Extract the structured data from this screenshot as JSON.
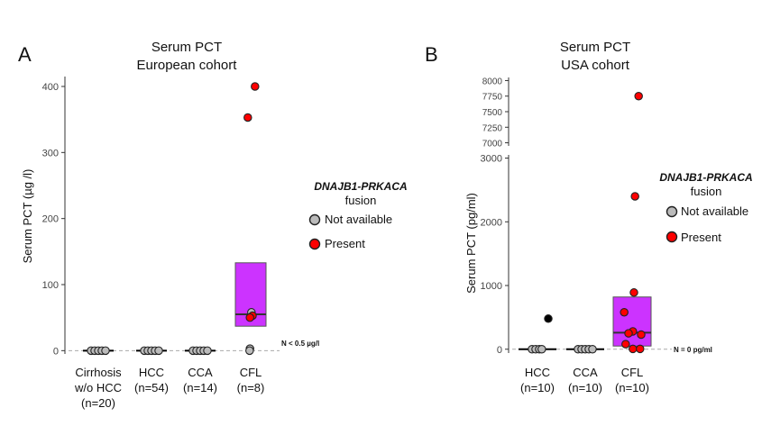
{
  "chart_data": [
    {
      "type": "box",
      "panel_label": "A",
      "title_lines": [
        "Serum PCT",
        "European cohort"
      ],
      "ylabel": "Serum PCT (µg /l)",
      "ylim": [
        -5,
        415
      ],
      "yticks": [
        0,
        100,
        200,
        300,
        400
      ],
      "categories": [
        {
          "lines": [
            "Cirrhosis",
            "w/o HCC",
            "(n=20)"
          ]
        },
        {
          "lines": [
            "HCC",
            "(n=54)"
          ]
        },
        {
          "lines": [
            "CCA",
            "(n=14)"
          ]
        },
        {
          "lines": [
            "CFL",
            "(n=8)"
          ]
        }
      ],
      "boxes": [
        {
          "category": 0,
          "q1": 0,
          "median": 0,
          "q3": 0,
          "color": "#ffffff"
        },
        {
          "category": 1,
          "q1": 0,
          "median": 0,
          "q3": 0,
          "color": "#ffffff"
        },
        {
          "category": 2,
          "q1": 0,
          "median": 0,
          "q3": 0,
          "color": "#ffffff"
        },
        {
          "category": 3,
          "q1": 37,
          "median": 55,
          "q3": 133,
          "color": "#cc33ff"
        }
      ],
      "points": [
        {
          "category": 0,
          "y": 0,
          "status": "not_available",
          "jitter": -0.2
        },
        {
          "category": 0,
          "y": 0,
          "status": "not_available",
          "jitter": -0.1
        },
        {
          "category": 0,
          "y": 0,
          "status": "not_available",
          "jitter": 0.0
        },
        {
          "category": 0,
          "y": 0,
          "status": "not_available",
          "jitter": 0.1
        },
        {
          "category": 0,
          "y": 0,
          "status": "not_available",
          "jitter": 0.2
        },
        {
          "category": 1,
          "y": 0,
          "status": "not_available",
          "jitter": -0.2
        },
        {
          "category": 1,
          "y": 0,
          "status": "not_available",
          "jitter": -0.1
        },
        {
          "category": 1,
          "y": 0,
          "status": "not_available",
          "jitter": 0.0
        },
        {
          "category": 1,
          "y": 0,
          "status": "not_available",
          "jitter": 0.1
        },
        {
          "category": 1,
          "y": 0,
          "status": "not_available",
          "jitter": 0.2
        },
        {
          "category": 2,
          "y": 0,
          "status": "not_available",
          "jitter": -0.2
        },
        {
          "category": 2,
          "y": 0,
          "status": "not_available",
          "jitter": -0.1
        },
        {
          "category": 2,
          "y": 0,
          "status": "not_available",
          "jitter": 0.0
        },
        {
          "category": 2,
          "y": 0,
          "status": "not_available",
          "jitter": 0.1
        },
        {
          "category": 2,
          "y": 0,
          "status": "not_available",
          "jitter": 0.2
        },
        {
          "category": 3,
          "y": 400,
          "status": "present",
          "jitter": 0.12
        },
        {
          "category": 3,
          "y": 353,
          "status": "present",
          "jitter": -0.08
        },
        {
          "category": 3,
          "y": 58,
          "status": "not_available",
          "jitter": 0.02
        },
        {
          "category": 3,
          "y": 53,
          "status": "present",
          "jitter": 0.05
        },
        {
          "category": 3,
          "y": 50,
          "status": "present",
          "jitter": -0.02
        },
        {
          "category": 3,
          "y": 3,
          "status": "not_available",
          "jitter": -0.02
        },
        {
          "category": 3,
          "y": 0,
          "status": "not_available",
          "jitter": -0.03
        }
      ],
      "reference_line": {
        "y": 0,
        "label": "N < 0.5 µg/l"
      },
      "legend": {
        "title_lines": [
          "DNAJB1-PRKACA",
          "fusion"
        ],
        "entries": [
          {
            "label": "Not available",
            "color": "#bbbbbb"
          },
          {
            "label": "Present",
            "color": "#ff0000"
          }
        ]
      }
    },
    {
      "type": "box",
      "panel_label": "B",
      "title_lines": [
        "Serum PCT",
        "USA cohort"
      ],
      "ylabel": "Serum PCT (pg/ml)",
      "broken_axis": true,
      "upper_ylim": [
        6950,
        8050
      ],
      "upper_yticks": [
        7000,
        7250,
        7500,
        7750,
        8000
      ],
      "lower_ylim": [
        -60,
        3050
      ],
      "lower_yticks": [
        0,
        1000,
        2000,
        3000
      ],
      "categories": [
        {
          "lines": [
            "HCC",
            "(n=10)"
          ]
        },
        {
          "lines": [
            "CCA",
            "(n=10)"
          ]
        },
        {
          "lines": [
            "CFL",
            "(n=10)"
          ]
        }
      ],
      "boxes": [
        {
          "category": 0,
          "q1": 0,
          "median": 0,
          "q3": 0,
          "color": "#ffffff"
        },
        {
          "category": 1,
          "q1": 0,
          "median": 0,
          "q3": 0,
          "color": "#ffffff"
        },
        {
          "category": 2,
          "q1": 50,
          "median": 260,
          "q3": 820,
          "color": "#cc33ff"
        }
      ],
      "points": [
        {
          "category": 0,
          "y": 480,
          "status": "black",
          "jitter": 0.3
        },
        {
          "category": 0,
          "y": 0,
          "status": "not_available",
          "jitter": -0.15
        },
        {
          "category": 0,
          "y": 0,
          "status": "not_available",
          "jitter": -0.05
        },
        {
          "category": 0,
          "y": 0,
          "status": "not_available",
          "jitter": 0.05
        },
        {
          "category": 0,
          "y": 0,
          "status": "not_available",
          "jitter": 0.12
        },
        {
          "category": 1,
          "y": 0,
          "status": "not_available",
          "jitter": -0.2
        },
        {
          "category": 1,
          "y": 0,
          "status": "not_available",
          "jitter": -0.1
        },
        {
          "category": 1,
          "y": 0,
          "status": "not_available",
          "jitter": 0.0
        },
        {
          "category": 1,
          "y": 0,
          "status": "not_available",
          "jitter": 0.1
        },
        {
          "category": 1,
          "y": 0,
          "status": "not_available",
          "jitter": 0.2
        },
        {
          "category": 2,
          "y": 7750,
          "status": "present",
          "jitter": 0.18
        },
        {
          "category": 2,
          "y": 2400,
          "status": "present",
          "jitter": 0.08
        },
        {
          "category": 2,
          "y": 890,
          "status": "present",
          "jitter": 0.05
        },
        {
          "category": 2,
          "y": 580,
          "status": "present",
          "jitter": -0.22
        },
        {
          "category": 2,
          "y": 280,
          "status": "present",
          "jitter": 0.02
        },
        {
          "category": 2,
          "y": 250,
          "status": "present",
          "jitter": -0.1
        },
        {
          "category": 2,
          "y": 230,
          "status": "present",
          "jitter": 0.25
        },
        {
          "category": 2,
          "y": 80,
          "status": "present",
          "jitter": -0.18
        },
        {
          "category": 2,
          "y": 5,
          "status": "present",
          "jitter": 0.02
        },
        {
          "category": 2,
          "y": 5,
          "status": "present",
          "jitter": 0.22
        }
      ],
      "reference_line": {
        "y": 0,
        "label": "N = 0 pg/ml"
      },
      "legend": {
        "title_lines": [
          "DNAJB1-PRKACA",
          "fusion"
        ],
        "entries": [
          {
            "label": "Not available",
            "color": "#bbbbbb"
          },
          {
            "label": "Present",
            "color": "#ff0000"
          }
        ]
      }
    }
  ]
}
